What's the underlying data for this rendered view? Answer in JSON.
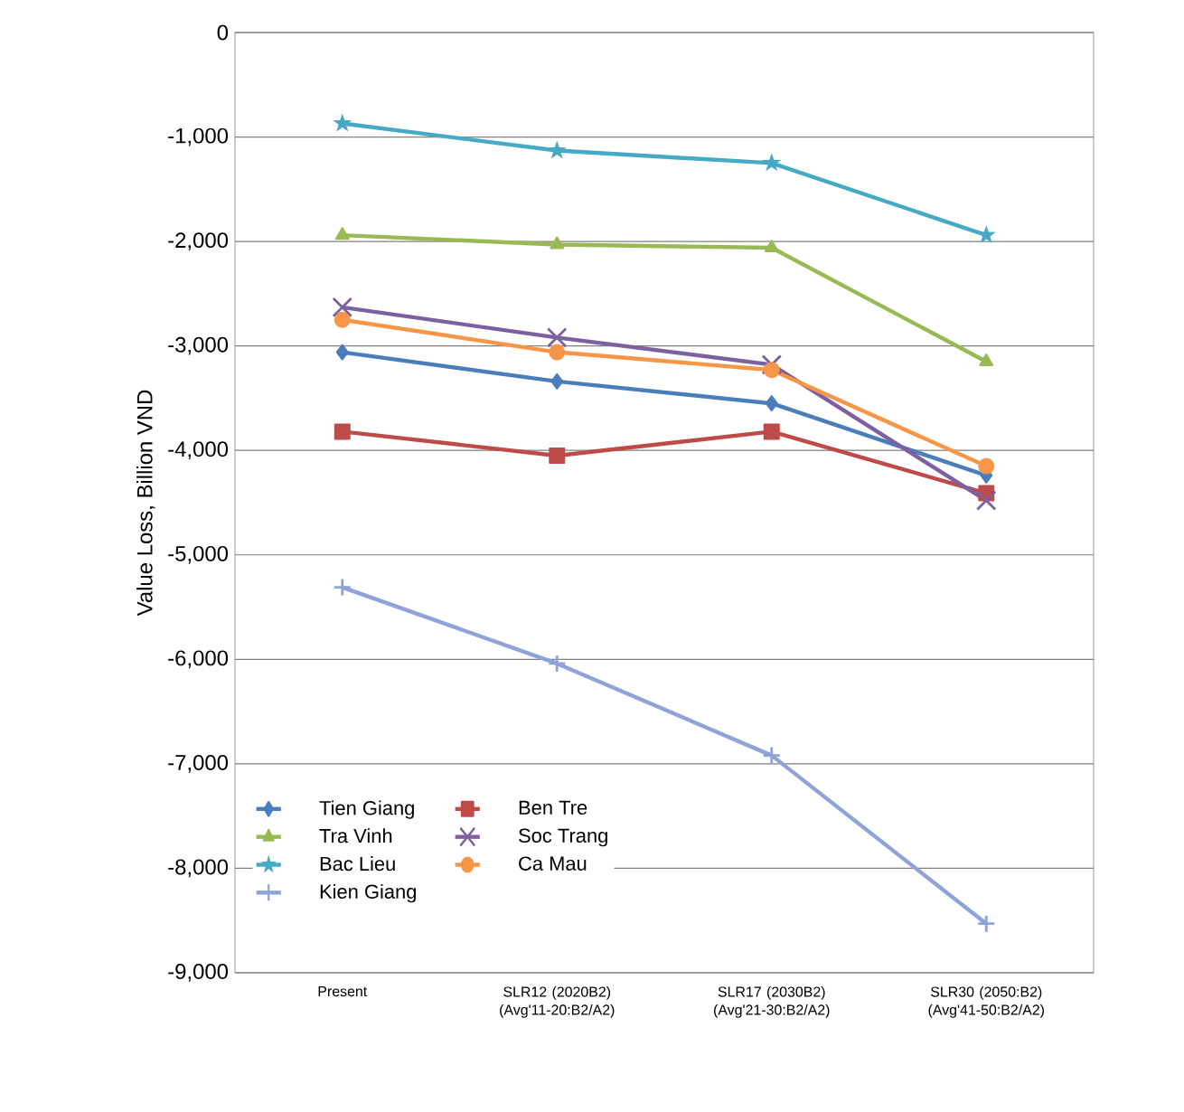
{
  "chart_data": {
    "type": "line",
    "ylabel": "Value Loss, Billion VND",
    "categories": [
      "Present",
      "SLR12 (2020B2) (Avg'11-20:B2/A2)",
      "SLR17 (2030B2) (Avg'21-30:B2/A2)",
      "SLR30 (2050:B2) (Avg'41-50:B2/A2)"
    ],
    "series": [
      {
        "name": "Tien Giang",
        "color": "#4a7ebb",
        "marker": "diamond",
        "values": [
          -3060,
          -3340,
          -3550,
          -4240
        ]
      },
      {
        "name": "Ben Tre",
        "color": "#be4b48",
        "marker": "square",
        "values": [
          -3820,
          -4050,
          -3820,
          -4410
        ]
      },
      {
        "name": "Tra Vinh",
        "color": "#98b954",
        "marker": "triangle",
        "values": [
          -1940,
          -2030,
          -2060,
          -3150
        ]
      },
      {
        "name": "Soc Trang",
        "color": "#7d60a0",
        "marker": "cross",
        "values": [
          -2630,
          -2920,
          -3180,
          -4480
        ]
      },
      {
        "name": "Bac Lieu",
        "color": "#46aac5",
        "marker": "star",
        "values": [
          -870,
          -1130,
          -1250,
          -1940
        ]
      },
      {
        "name": "Ca Mau",
        "color": "#f79646",
        "marker": "circle",
        "values": [
          -2750,
          -3060,
          -3230,
          -4150
        ]
      },
      {
        "name": "Kien Giang",
        "color": "#8fa3d9",
        "marker": "plus",
        "values": [
          -5310,
          -6040,
          -6920,
          -8530
        ]
      }
    ],
    "ylim": [
      -9000,
      0
    ],
    "yticks": [
      {
        "value": -9000,
        "label": "-9,000"
      },
      {
        "value": -8000,
        "label": "-8,000"
      },
      {
        "value": -7000,
        "label": "-7,000"
      },
      {
        "value": -6000,
        "label": "-6,000"
      },
      {
        "value": -5000,
        "label": "-5,000"
      },
      {
        "value": -4000,
        "label": "-4,000"
      },
      {
        "value": -3000,
        "label": "-3,000"
      },
      {
        "value": -2000,
        "label": "-2,000"
      },
      {
        "value": -1000,
        "label": "-1,000"
      },
      0
    ],
    "grid": "y",
    "legend": "bottom left",
    "line_style": "solid"
  }
}
